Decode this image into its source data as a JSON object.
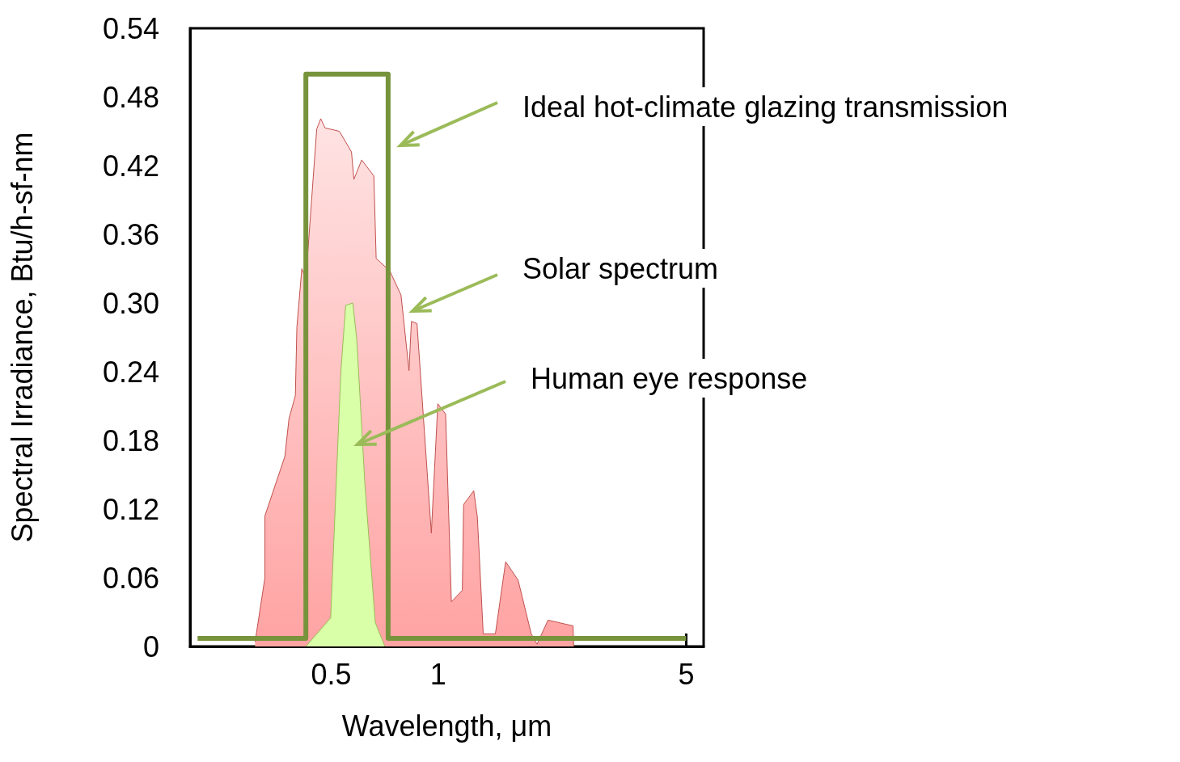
{
  "chart_data": {
    "type": "area",
    "xlabel": "Wavelength, μm",
    "ylabel": "Spectral Irradiance, Btu/h-sf-nm",
    "log": "x",
    "xlim": [
      0.2,
      5.6
    ],
    "xticks": [
      0.5,
      1,
      5
    ],
    "ylim": [
      0,
      0.54
    ],
    "yticks": [
      0,
      0.06,
      0.12,
      0.18,
      0.24,
      {
        "value": 0.3,
        "label": "0.30"
      },
      0.36,
      0.42,
      0.48,
      0.54
    ],
    "grid": false,
    "marker": "none",
    "series": [
      {
        "color": "#c0504d",
        "x": [
          0.305,
          0.325,
          0.325,
          0.37,
          0.38,
          0.396,
          0.4,
          0.413,
          0.424,
          0.455,
          0.467,
          0.48,
          0.527,
          0.57,
          0.579,
          0.609,
          0.659,
          0.669,
          0.731,
          0.786,
          0.828,
          0.841,
          0.872,
          0.957,
          0.998,
          1.05,
          1.09,
          1.17,
          1.18,
          1.26,
          1.29,
          1.34,
          1.45,
          1.55,
          1.68,
          1.83,
          1.9,
          2.04,
          2.4,
          2.41
        ],
        "values": [
          0.004,
          0.06,
          0.114,
          0.166,
          0.199,
          0.219,
          0.279,
          0.33,
          0.321,
          0.452,
          0.461,
          0.453,
          0.45,
          0.432,
          0.408,
          0.425,
          0.411,
          0.339,
          0.328,
          0.307,
          0.241,
          0.284,
          0.282,
          0.099,
          0.212,
          0.203,
          0.039,
          0.049,
          0.124,
          0.136,
          0.113,
          0.011,
          0.011,
          0.074,
          0.058,
          0.011,
          0.002,
          0.023,
          0.018,
          0
        ]
      },
      {
        "color": "#d9ffa8",
        "x": [
          0.424,
          0.498,
          0.532,
          0.549,
          0.575,
          0.59,
          0.622,
          0.665,
          0.708
        ],
        "values": [
          0,
          0.025,
          0.24,
          0.298,
          0.3,
          0.268,
          0.141,
          0.021,
          0
        ]
      },
      {
        "type": "step",
        "color": "#77933c",
        "x": [
          0.21,
          0.424,
          0.424,
          0.723,
          0.723,
          5
        ],
        "values": [
          0.007,
          0.007,
          0.5,
          0.5,
          0.007,
          0.007
        ]
      }
    ],
    "annotations": [
      "Ideal hot-climate glazing transmission",
      "Solar spectrum",
      "Human eye response"
    ]
  }
}
